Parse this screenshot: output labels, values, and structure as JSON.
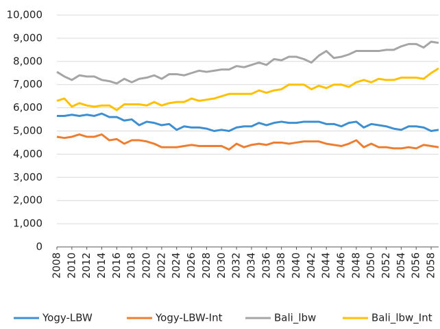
{
  "chart_data": {
    "type": "line",
    "x": [
      2008,
      2009,
      2010,
      2011,
      2012,
      2013,
      2014,
      2015,
      2016,
      2017,
      2018,
      2019,
      2020,
      2021,
      2022,
      2023,
      2024,
      2025,
      2026,
      2027,
      2028,
      2029,
      2030,
      2031,
      2032,
      2033,
      2034,
      2035,
      2036,
      2037,
      2038,
      2039,
      2040,
      2041,
      2042,
      2043,
      2044,
      2045,
      2046,
      2047,
      2048,
      2049,
      2050,
      2051,
      2052,
      2053,
      2054,
      2055,
      2056,
      2057,
      2058,
      2059
    ],
    "series": [
      {
        "name": "Yogy-LBW",
        "color": "#3d8fd1",
        "values": [
          5650,
          5650,
          5700,
          5650,
          5700,
          5650,
          5750,
          5600,
          5600,
          5450,
          5500,
          5250,
          5400,
          5350,
          5250,
          5300,
          5050,
          5200,
          5150,
          5150,
          5100,
          5000,
          5050,
          5000,
          5150,
          5200,
          5200,
          5350,
          5250,
          5350,
          5400,
          5350,
          5350,
          5400,
          5400,
          5400,
          5300,
          5300,
          5200,
          5350,
          5400,
          5150,
          5300,
          5250,
          5200,
          5100,
          5050,
          5200,
          5200,
          5150,
          5000,
          5050
        ]
      },
      {
        "name": "Yogy-LBW-Int",
        "color": "#ed7d31",
        "values": [
          4750,
          4700,
          4750,
          4850,
          4750,
          4750,
          4850,
          4600,
          4650,
          4450,
          4600,
          4600,
          4550,
          4450,
          4300,
          4300,
          4300,
          4350,
          4400,
          4350,
          4350,
          4350,
          4350,
          4200,
          4450,
          4300,
          4400,
          4450,
          4400,
          4500,
          4500,
          4450,
          4500,
          4550,
          4550,
          4550,
          4450,
          4400,
          4350,
          4450,
          4600,
          4300,
          4450,
          4300,
          4300,
          4250,
          4250,
          4300,
          4250,
          4400,
          4350,
          4300
        ]
      },
      {
        "name": "Bali_lbw",
        "color": "#a5a5a5",
        "values": [
          7550,
          7350,
          7200,
          7400,
          7350,
          7350,
          7200,
          7150,
          7050,
          7250,
          7100,
          7250,
          7300,
          7400,
          7250,
          7450,
          7450,
          7400,
          7500,
          7600,
          7550,
          7600,
          7650,
          7650,
          7800,
          7750,
          7850,
          7950,
          7850,
          8100,
          8050,
          8200,
          8200,
          8100,
          7950,
          8250,
          8450,
          8150,
          8200,
          8300,
          8450,
          8450,
          8450,
          8450,
          8500,
          8500,
          8650,
          8750,
          8750,
          8600,
          8850,
          8800
        ]
      },
      {
        "name": "Bali_lbw_Int",
        "color": "#ffc000",
        "values": [
          6300,
          6400,
          6050,
          6200,
          6100,
          6050,
          6100,
          6100,
          5900,
          6150,
          6150,
          6150,
          6100,
          6250,
          6100,
          6200,
          6250,
          6250,
          6400,
          6300,
          6350,
          6400,
          6500,
          6600,
          6600,
          6600,
          6600,
          6750,
          6650,
          6750,
          6800,
          7000,
          7000,
          7000,
          6800,
          6950,
          6850,
          7000,
          7000,
          6900,
          7100,
          7200,
          7100,
          7250,
          7200,
          7200,
          7300,
          7300,
          7300,
          7250,
          7500,
          7700
        ]
      }
    ],
    "xlim": [
      2008,
      2059
    ],
    "xticks": [
      2008,
      2010,
      2012,
      2014,
      2016,
      2018,
      2020,
      2022,
      2024,
      2026,
      2028,
      2030,
      2032,
      2034,
      2036,
      2038,
      2040,
      2042,
      2044,
      2046,
      2048,
      2050,
      2052,
      2054,
      2056,
      2058
    ],
    "ylim": [
      0,
      10000
    ],
    "yticks": [
      0,
      {
        "value": 1000,
        "label": "1,000"
      },
      {
        "value": 2000,
        "label": "2,000"
      },
      {
        "value": 3000,
        "label": "3,000"
      },
      {
        "value": 4000,
        "label": "4,000"
      },
      {
        "value": 5000,
        "label": "5,000"
      },
      {
        "value": 6000,
        "label": "6,000"
      },
      {
        "value": 7000,
        "label": "7,000"
      },
      {
        "value": 8000,
        "label": "8,000"
      },
      {
        "value": 9000,
        "label": "9,000"
      },
      {
        "value": 10000,
        "label": "10,000"
      }
    ],
    "grid": true,
    "legend": "bottom"
  }
}
